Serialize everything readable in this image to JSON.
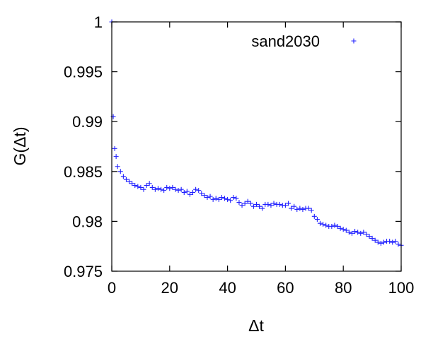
{
  "chart_data": {
    "type": "scatter",
    "title": "",
    "xlabel": "Δt",
    "ylabel": "G(Δt)",
    "xlim": [
      0,
      100
    ],
    "ylim": [
      0.975,
      1.0
    ],
    "xticks": [
      0,
      20,
      40,
      60,
      80,
      100
    ],
    "xtick_labels": [
      "0",
      "20",
      "40",
      "60",
      "80",
      "100"
    ],
    "yticks": [
      0.975,
      0.98,
      0.985,
      0.99,
      0.995,
      1.0
    ],
    "ytick_labels": [
      "0.975",
      "0.98",
      "0.985",
      "0.99",
      "0.995",
      "1"
    ],
    "grid": false,
    "legend_position": "top-right",
    "marker": "plus",
    "colors": {
      "series": "#1f1fff",
      "axes": "#000000",
      "background": "#ffffff"
    },
    "series": [
      {
        "name": "sand2030",
        "x": [
          0,
          0.5,
          1,
          1.5,
          2,
          3,
          4,
          5,
          6,
          7,
          8,
          9,
          10,
          11,
          12,
          13,
          14,
          15,
          16,
          17,
          18,
          19,
          20,
          21,
          22,
          23,
          24,
          25,
          26,
          27,
          28,
          29,
          30,
          31,
          32,
          33,
          34,
          35,
          36,
          37,
          38,
          39,
          40,
          41,
          42,
          43,
          44,
          45,
          46,
          47,
          48,
          49,
          50,
          51,
          52,
          53,
          54,
          55,
          56,
          57,
          58,
          59,
          60,
          61,
          62,
          63,
          64,
          65,
          66,
          67,
          68,
          69,
          70,
          71,
          72,
          73,
          74,
          75,
          76,
          77,
          78,
          79,
          80,
          81,
          82,
          83,
          84,
          85,
          86,
          87,
          88,
          89,
          90,
          91,
          92,
          93,
          94,
          95,
          96,
          97,
          98,
          99,
          100
        ],
        "y": [
          1.0,
          0.9905,
          0.9873,
          0.9865,
          0.9855,
          0.985,
          0.9845,
          0.9842,
          0.984,
          0.9838,
          0.9836,
          0.9835,
          0.9834,
          0.9832,
          0.9836,
          0.9838,
          0.9834,
          0.9832,
          0.9833,
          0.9832,
          0.9831,
          0.9834,
          0.9833,
          0.9834,
          0.9832,
          0.9831,
          0.9832,
          0.9829,
          0.983,
          0.9827,
          0.9829,
          0.9832,
          0.9831,
          0.9828,
          0.9826,
          0.9824,
          0.9825,
          0.9822,
          0.9823,
          0.9822,
          0.9824,
          0.9823,
          0.9822,
          0.9821,
          0.9824,
          0.9823,
          0.9819,
          0.9816,
          0.9818,
          0.982,
          0.9818,
          0.9815,
          0.9817,
          0.9815,
          0.9813,
          0.9817,
          0.9817,
          0.9816,
          0.9818,
          0.9817,
          0.9817,
          0.9816,
          0.9816,
          0.9818,
          0.9813,
          0.9815,
          0.9812,
          0.9813,
          0.9812,
          0.9813,
          0.9813,
          0.9811,
          0.9805,
          0.9802,
          0.9798,
          0.9797,
          0.9796,
          0.9795,
          0.9795,
          0.9796,
          0.9795,
          0.9793,
          0.9792,
          0.9791,
          0.9789,
          0.9788,
          0.979,
          0.9789,
          0.9788,
          0.9789,
          0.9787,
          0.9785,
          0.9783,
          0.9781,
          0.9779,
          0.9778,
          0.9779,
          0.978,
          0.978,
          0.9779,
          0.978,
          0.9777,
          0.9776
        ]
      }
    ]
  }
}
